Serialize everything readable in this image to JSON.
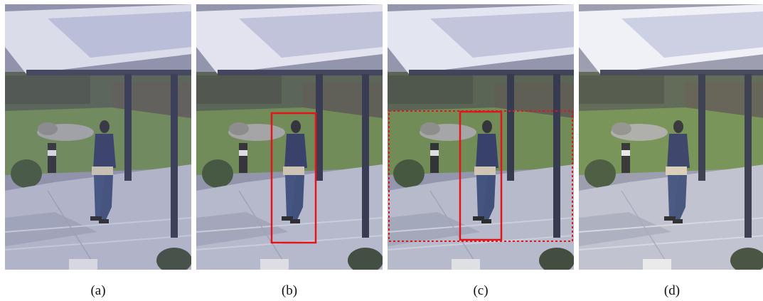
{
  "figure": {
    "panels": [
      {
        "caption": "(a)"
      },
      {
        "caption": "(b)"
      },
      {
        "caption": "(c)"
      },
      {
        "caption": "(d)"
      }
    ],
    "colors": {
      "box": "#e0161c",
      "sky_wall": "#8c8fa8",
      "foliage": "#4f5a3e",
      "lawn": "#6d8a4a",
      "deck": "#b9bccb",
      "pole": "#2d3142",
      "person_jacket": "#2f3860"
    }
  }
}
